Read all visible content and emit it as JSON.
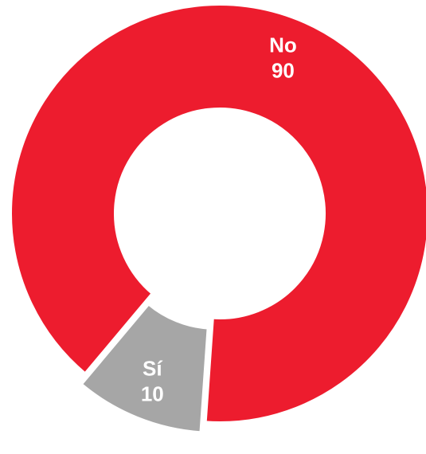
{
  "chart_data": {
    "type": "pie",
    "variant": "donut",
    "slices": [
      {
        "name": "No",
        "value": 90,
        "color": "#ED1C2E"
      },
      {
        "name": "Sí",
        "value": 10,
        "color": "#A6A6A6"
      }
    ],
    "title": "",
    "legend": "none",
    "data_labels": "inside"
  }
}
